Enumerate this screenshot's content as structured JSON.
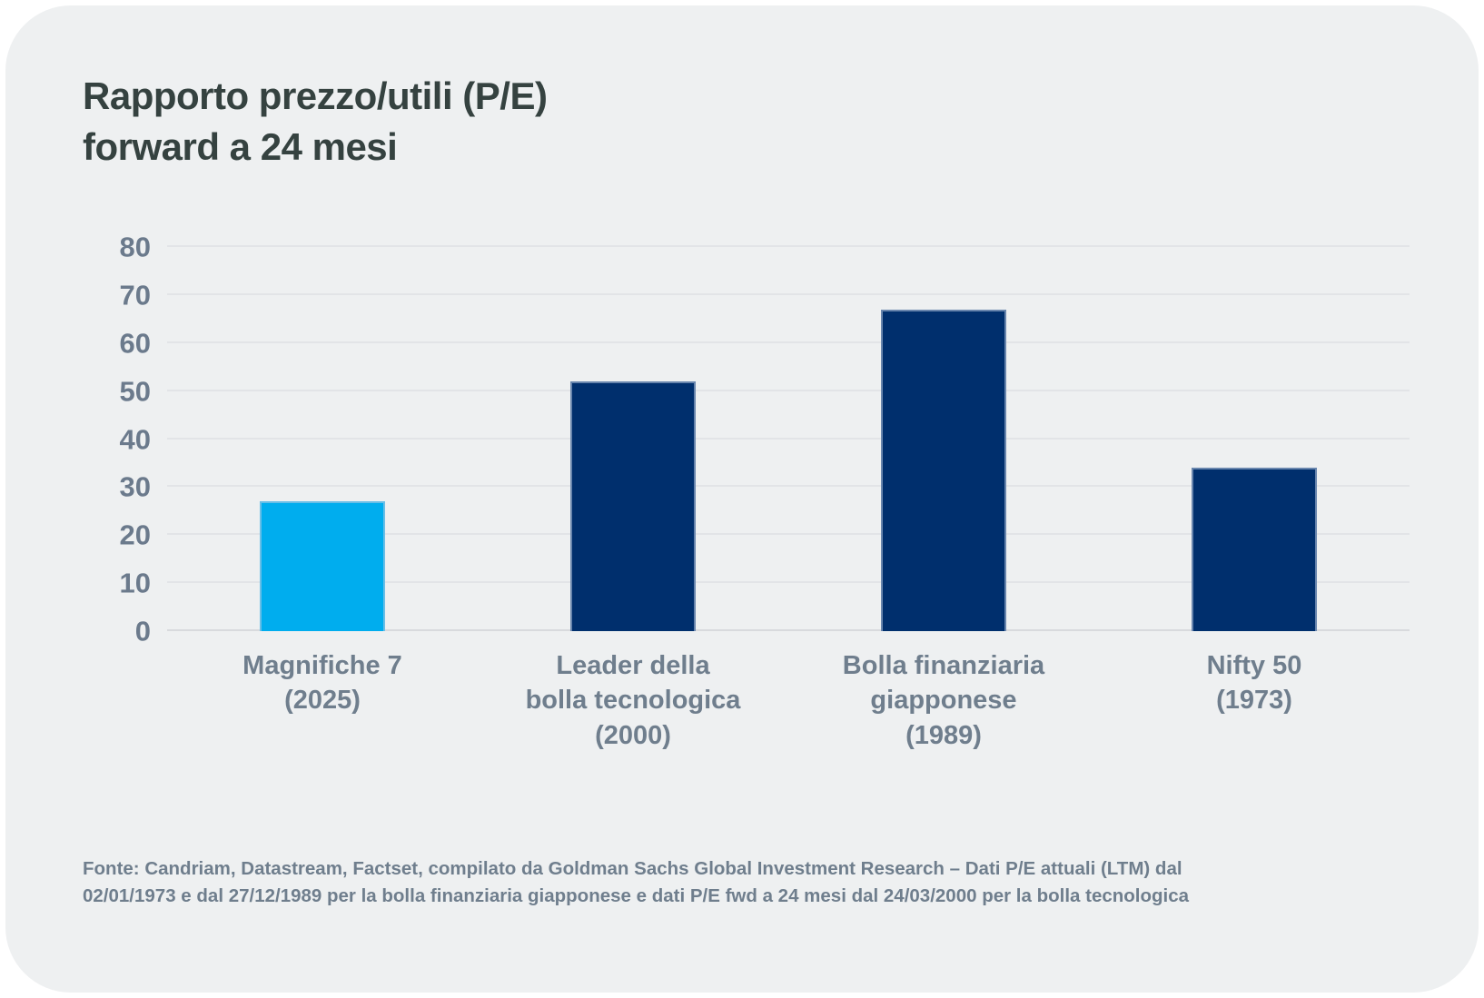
{
  "header": {
    "title_line1": "Rapporto prezzo/utili (P/E)",
    "title_line2": "forward a 24 mesi"
  },
  "chart_data": {
    "type": "bar",
    "title": "Rapporto prezzo/utili (P/E) forward a 24 mesi",
    "xlabel": "",
    "ylabel": "",
    "ylim": [
      0,
      80
    ],
    "yticks": [
      0,
      10,
      20,
      30,
      40,
      50,
      60,
      70,
      80
    ],
    "grid": true,
    "legend": false,
    "categories": [
      "Magnifiche 7 (2025)",
      "Leader della bolla tecnologica (2000)",
      "Bolla finanziaria giapponese (1989)",
      "Nifty 50 (1973)"
    ],
    "values": [
      27,
      52,
      67,
      34
    ],
    "bars": [
      {
        "slug": "magnifiche-7-2025",
        "label_lines": [
          "Magnifiche 7",
          "(2025)"
        ],
        "value": 27,
        "color": "#00adee"
      },
      {
        "slug": "leader-bolla-tecnologica",
        "label_lines": [
          "Leader della",
          "bolla tecnologica",
          "(2000)"
        ],
        "value": 52,
        "color": "#002f6d"
      },
      {
        "slug": "bolla-finanziaria-giapponese",
        "label_lines": [
          "Bolla finanziaria",
          "giapponese",
          "(1989)"
        ],
        "value": 67,
        "color": "#002f6d"
      },
      {
        "slug": "nifty-50-1973",
        "label_lines": [
          "Nifty 50",
          "(1973)"
        ],
        "value": 34,
        "color": "#002f6d"
      }
    ]
  },
  "palette": {
    "card_background": "#eef0f1",
    "accent_cyan": "#00adee",
    "navy": "#002f6d",
    "title_text": "#354240",
    "axis_text": "#6b7a8c",
    "gridline": "#e2e4e7"
  },
  "footer": {
    "line1": "Fonte: Candriam, Datastream, Factset, compilato da Goldman Sachs Global Investment Research – Dati P/E attuali (LTM) dal",
    "line2": "02/01/1973 e dal 27/12/1989 per la bolla finanziaria giapponese e dati P/E fwd a 24 mesi dal 24/03/2000 per la bolla tecnologica"
  }
}
